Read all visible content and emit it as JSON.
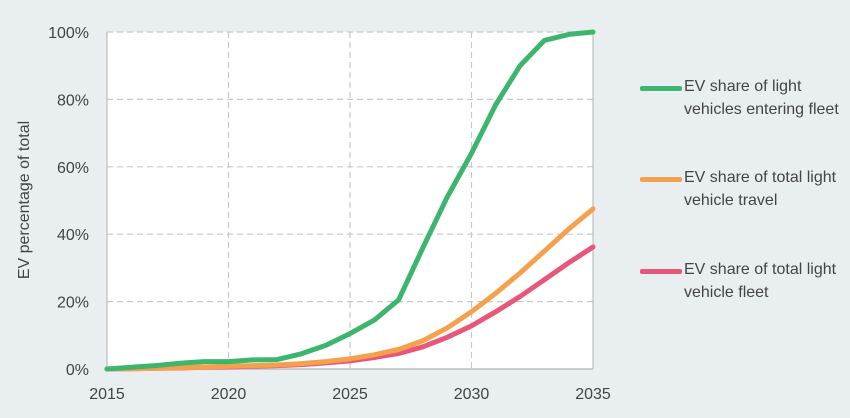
{
  "chart_data": {
    "type": "line",
    "title": "",
    "xlabel": "",
    "ylabel": "EV percentage of total",
    "xlim": [
      2015,
      2035
    ],
    "ylim": [
      0,
      100
    ],
    "x_ticks": [
      "2015",
      "2020",
      "2025",
      "2030",
      "2035"
    ],
    "y_ticks": [
      "0%",
      "20%",
      "40%",
      "60%",
      "80%",
      "100%"
    ],
    "grid": true,
    "legend_position": "right",
    "x": [
      2015,
      2016,
      2017,
      2018,
      2019,
      2020,
      2021,
      2022,
      2023,
      2024,
      2025,
      2026,
      2027,
      2028,
      2029,
      2030,
      2031,
      2032,
      2033,
      2034,
      2035
    ],
    "series": [
      {
        "name": "EV share of light vehicles entering fleet",
        "color": "#3db56c",
        "values": [
          0,
          0.5,
          1,
          1.7,
          2.2,
          2.2,
          2.7,
          2.8,
          4.5,
          7,
          10.5,
          14.5,
          20.5,
          36,
          51,
          64,
          78.5,
          90,
          97.5,
          99.3,
          100
        ]
      },
      {
        "name": "EV share of total light vehicle travel",
        "color": "#f5a04c",
        "values": [
          0,
          0.1,
          0.2,
          0.4,
          0.6,
          0.8,
          1,
          1.2,
          1.6,
          2.2,
          3,
          4.2,
          5.8,
          8.4,
          12.2,
          17,
          22.5,
          28.5,
          35,
          41.5,
          47.5
        ]
      },
      {
        "name": "EV share of total light vehicle fleet",
        "color": "#e8577a",
        "values": [
          0,
          0.1,
          0.2,
          0.3,
          0.5,
          0.6,
          0.8,
          1,
          1.3,
          1.8,
          2.4,
          3.4,
          4.6,
          6.6,
          9.4,
          12.8,
          17,
          21.5,
          26.5,
          31.5,
          36.2
        ]
      }
    ]
  }
}
